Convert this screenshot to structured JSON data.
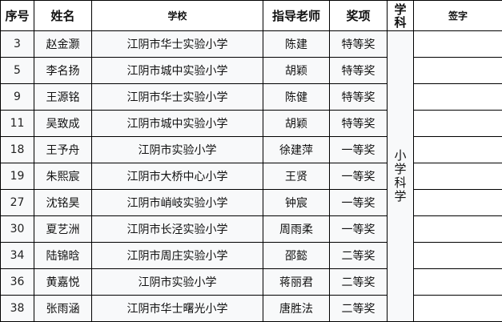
{
  "headers": {
    "seq": "序号",
    "name": "姓名",
    "school": "学校",
    "teacher": "指导老师",
    "award": "奖项",
    "subject_line1": "学",
    "subject_line2": "科",
    "signature": "签字"
  },
  "subject": "小学科学",
  "rows": [
    {
      "seq": "3",
      "name": "赵金灏",
      "school": "江阴市华士实验小学",
      "teacher": "陈建",
      "award": "特等奖"
    },
    {
      "seq": "5",
      "name": "李名扬",
      "school": "江阴市城中实验小学",
      "teacher": "胡颖",
      "award": "特等奖"
    },
    {
      "seq": "9",
      "name": "王源铭",
      "school": "江阴市华士实验小学",
      "teacher": "陈健",
      "award": "特等奖"
    },
    {
      "seq": "11",
      "name": "吴致成",
      "school": "江阴市城中实验小学",
      "teacher": "胡颖",
      "award": "特等奖"
    },
    {
      "seq": "18",
      "name": "王予舟",
      "school": "江阴市实验小学",
      "teacher": "徐建萍",
      "award": "一等奖"
    },
    {
      "seq": "19",
      "name": "朱熙宸",
      "school": "江阴市大桥中心小学",
      "teacher": "王贤",
      "award": "一等奖"
    },
    {
      "seq": "27",
      "name": "沈铭昊",
      "school": "江阴市峭岐实验小学",
      "teacher": "钟宸",
      "award": "一等奖"
    },
    {
      "seq": "30",
      "name": "夏艺洲",
      "school": "江阴市长泾实验小学",
      "teacher": "周雨柔",
      "award": "一等奖"
    },
    {
      "seq": "34",
      "name": "陆锦晗",
      "school": "江阴市周庄实验小学",
      "teacher": "邵懿",
      "award": "二等奖"
    },
    {
      "seq": "36",
      "name": "黄嘉悦",
      "school": "江阴市实验小学",
      "teacher": "蒋丽君",
      "award": "二等奖"
    },
    {
      "seq": "38",
      "name": "张雨涵",
      "school": "江阴市华士曙光小学",
      "teacher": "唐胜法",
      "award": "二等奖"
    }
  ]
}
